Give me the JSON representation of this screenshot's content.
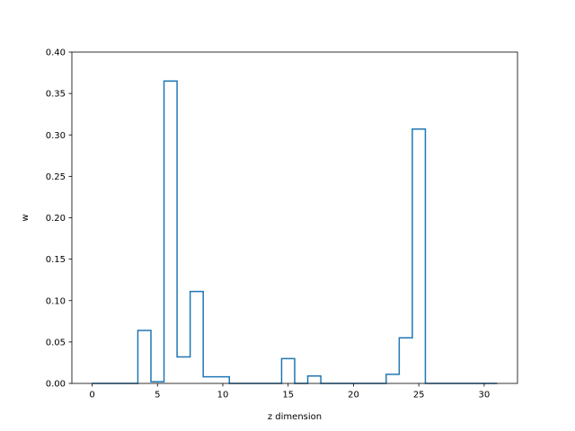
{
  "chart_data": {
    "type": "line",
    "drawstyle": "steps-mid",
    "title": "",
    "xlabel": "z dimension",
    "ylabel": "w",
    "xlim": [
      -1.55,
      32.55
    ],
    "ylim": [
      0.0,
      0.4
    ],
    "xticks": [
      0,
      5,
      10,
      15,
      20,
      25,
      30
    ],
    "yticks": [
      0.0,
      0.05,
      0.1,
      0.15,
      0.2,
      0.25,
      0.3,
      0.35,
      0.4
    ],
    "xtick_labels": [
      "0",
      "5",
      "10",
      "15",
      "20",
      "25",
      "30"
    ],
    "ytick_labels": [
      "0.00",
      "0.05",
      "0.10",
      "0.15",
      "0.20",
      "0.25",
      "0.30",
      "0.35",
      "0.40"
    ],
    "grid": false,
    "legend": "none",
    "series": [
      {
        "color": "#1f77b4",
        "x": [
          0,
          1,
          2,
          3,
          4,
          5,
          6,
          7,
          8,
          9,
          10,
          11,
          12,
          13,
          14,
          15,
          16,
          17,
          18,
          19,
          20,
          21,
          22,
          23,
          24,
          25,
          26,
          27,
          28,
          29,
          30,
          31
        ],
        "y": [
          0,
          0,
          0,
          0,
          0.064,
          0.002,
          0.365,
          0.032,
          0.111,
          0.008,
          0.008,
          0,
          0,
          0,
          0,
          0.03,
          0,
          0.009,
          0,
          0,
          0,
          0,
          0,
          0.011,
          0.055,
          0.307,
          0,
          0,
          0,
          0,
          0,
          0
        ]
      }
    ]
  }
}
